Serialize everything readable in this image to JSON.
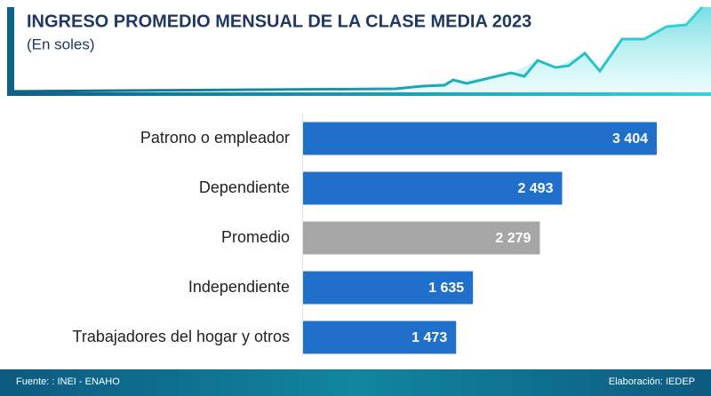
{
  "chart_data": {
    "type": "bar",
    "orientation": "horizontal",
    "title": "INGRESO PROMEDIO MENSUAL DE LA CLASE MEDIA 2023",
    "subtitle": "(En soles)",
    "categories": [
      "Patrono o empleador",
      "Dependiente",
      "Promedio",
      "Independiente",
      "Trabajadores del hogar y otros"
    ],
    "values": [
      3404,
      2493,
      2279,
      1635,
      1473
    ],
    "value_labels": [
      "3 404",
      "2 493",
      "2 279",
      "1 635",
      "1 473"
    ],
    "colors": [
      "#1f6fcb",
      "#1f6fcb",
      "#a6a6a6",
      "#1f6fcb",
      "#1f6fcb"
    ],
    "source": "Fuente: : INEI - ENAHO",
    "credit": "Elaboración: IEDEP"
  }
}
